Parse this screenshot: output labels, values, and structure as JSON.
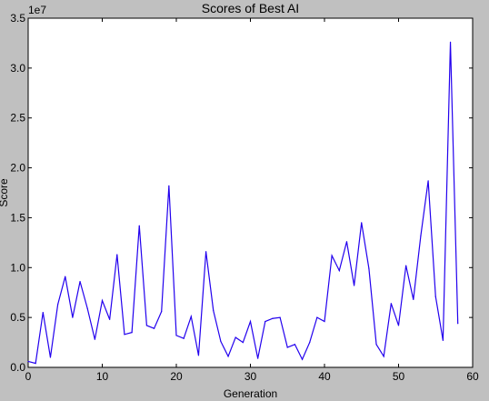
{
  "chart_data": {
    "type": "line",
    "title": "Scores of Best AI",
    "xlabel": "Generation",
    "ylabel": "Score",
    "y_offset_label": "1e7",
    "xlim": [
      0,
      60
    ],
    "ylim": [
      0,
      3.5
    ],
    "y_multiplier": 10000000,
    "grid": false,
    "line_color": "#2200ee",
    "x_ticks": [
      0,
      10,
      20,
      30,
      40,
      50,
      60
    ],
    "x_tick_labels": [
      "0",
      "10",
      "20",
      "30",
      "40",
      "50",
      "60"
    ],
    "y_ticks": [
      0,
      0.5,
      1.0,
      1.5,
      2.0,
      2.5,
      3.0,
      3.5
    ],
    "y_tick_labels": [
      "0.0",
      "0.5",
      "1.0",
      "1.5",
      "2.0",
      "2.5",
      "3.0",
      "3.5"
    ],
    "series": [
      {
        "x": [
          0,
          1,
          2,
          3,
          4,
          5,
          6,
          7,
          8,
          9,
          10,
          11,
          12,
          13,
          14,
          15,
          16,
          17,
          18,
          19,
          20,
          21,
          22,
          23,
          24,
          25,
          26,
          27,
          28,
          29,
          30,
          31,
          32,
          33,
          34,
          35,
          36,
          37,
          38,
          39,
          40,
          41,
          42,
          43,
          44,
          45,
          46,
          47,
          48,
          49,
          50,
          51,
          52,
          53,
          54,
          55,
          56,
          57,
          58
        ],
        "values": [
          0.06,
          0.04,
          0.55,
          0.1,
          0.63,
          0.91,
          0.5,
          0.86,
          0.59,
          0.28,
          0.67,
          0.48,
          1.13,
          0.33,
          0.35,
          1.42,
          0.42,
          0.39,
          0.56,
          1.82,
          0.32,
          0.29,
          0.51,
          0.12,
          1.16,
          0.57,
          0.26,
          0.11,
          0.3,
          0.25,
          0.46,
          0.09,
          0.46,
          0.49,
          0.5,
          0.2,
          0.23,
          0.08,
          0.25,
          0.5,
          0.46,
          1.12,
          0.97,
          1.26,
          0.82,
          1.45,
          0.99,
          0.23,
          0.11,
          0.64,
          0.42,
          1.02,
          0.68,
          1.32,
          1.87,
          0.71,
          0.27,
          3.26,
          0.44
        ]
      }
    ]
  }
}
